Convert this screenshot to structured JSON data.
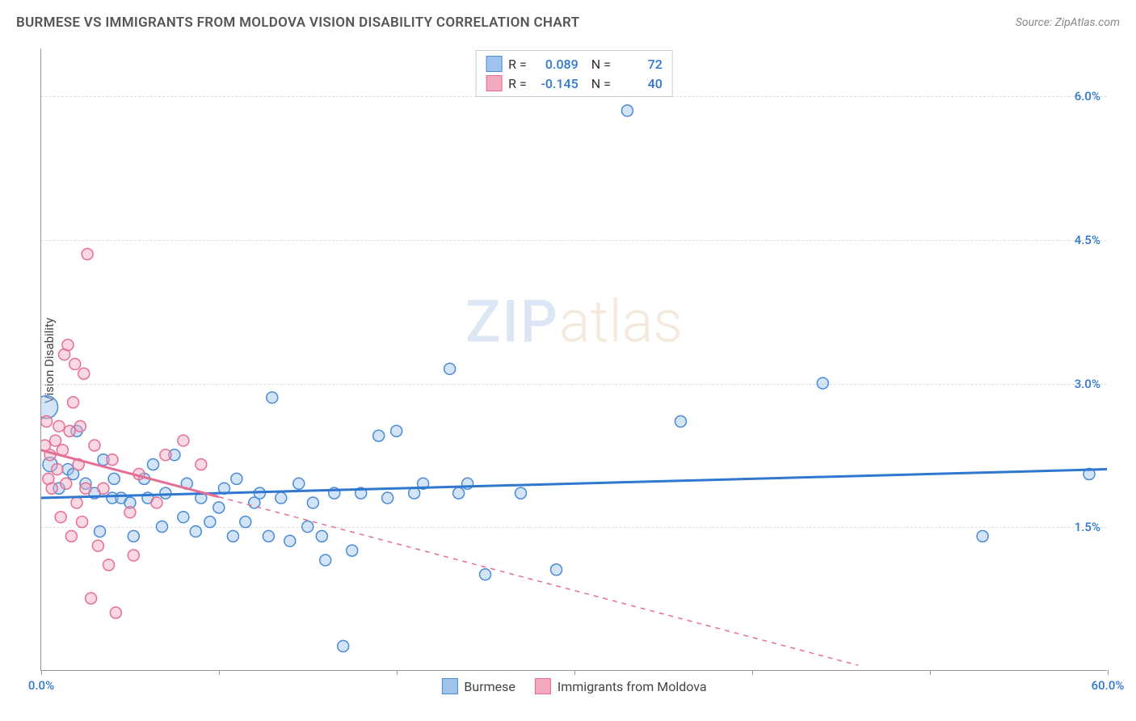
{
  "title": "BURMESE VS IMMIGRANTS FROM MOLDOVA VISION DISABILITY CORRELATION CHART",
  "source": "Source: ZipAtlas.com",
  "y_axis_label": "Vision Disability",
  "watermark": {
    "part1": "ZIP",
    "part2": "atlas"
  },
  "chart": {
    "type": "scatter",
    "xlim": [
      0,
      60
    ],
    "ylim": [
      0,
      6.5
    ],
    "x_ticks": [
      0,
      10,
      20,
      30,
      40,
      50,
      60
    ],
    "x_tick_labels_shown": {
      "0": "0.0%",
      "60": "60.0%"
    },
    "y_ticks": [
      1.5,
      3.0,
      4.5,
      6.0
    ],
    "y_tick_labels": [
      "1.5%",
      "3.0%",
      "4.5%",
      "6.0%"
    ],
    "grid_color": "#dddddd",
    "axis_color": "#999999",
    "background_color": "#ffffff",
    "series": [
      {
        "name": "Burmese",
        "fill": "#9ec3ec",
        "stroke": "#4a8bd6",
        "line_color": "#2f77cf",
        "R": "0.089",
        "N": "72",
        "points": [
          [
            0.3,
            2.75,
            14
          ],
          [
            0.5,
            2.15,
            9
          ],
          [
            1.0,
            1.9,
            7
          ],
          [
            1.5,
            2.1,
            7
          ],
          [
            1.8,
            2.05,
            7
          ],
          [
            2.0,
            2.5,
            7
          ],
          [
            2.5,
            1.95,
            7
          ],
          [
            3.0,
            1.85,
            7
          ],
          [
            3.3,
            1.45,
            7
          ],
          [
            3.5,
            2.2,
            7
          ],
          [
            4.0,
            1.8,
            7
          ],
          [
            4.1,
            2.0,
            7
          ],
          [
            4.5,
            1.8,
            7
          ],
          [
            5.0,
            1.75,
            7
          ],
          [
            5.2,
            1.4,
            7
          ],
          [
            5.8,
            2.0,
            7
          ],
          [
            6.0,
            1.8,
            7
          ],
          [
            6.3,
            2.15,
            7
          ],
          [
            6.8,
            1.5,
            7
          ],
          [
            7.0,
            1.85,
            7
          ],
          [
            7.5,
            2.25,
            7
          ],
          [
            8.0,
            1.6,
            7
          ],
          [
            8.2,
            1.95,
            7
          ],
          [
            8.7,
            1.45,
            7
          ],
          [
            9.0,
            1.8,
            7
          ],
          [
            9.5,
            1.55,
            7
          ],
          [
            10.0,
            1.7,
            7
          ],
          [
            10.3,
            1.9,
            7
          ],
          [
            10.8,
            1.4,
            7
          ],
          [
            11.0,
            2.0,
            7
          ],
          [
            11.5,
            1.55,
            7
          ],
          [
            12.0,
            1.75,
            7
          ],
          [
            12.3,
            1.85,
            7
          ],
          [
            12.8,
            1.4,
            7
          ],
          [
            13.0,
            2.85,
            7
          ],
          [
            13.5,
            1.8,
            7
          ],
          [
            14.0,
            1.35,
            7
          ],
          [
            14.5,
            1.95,
            7
          ],
          [
            15.0,
            1.5,
            7
          ],
          [
            15.3,
            1.75,
            7
          ],
          [
            15.8,
            1.4,
            7
          ],
          [
            16.0,
            1.15,
            7
          ],
          [
            16.5,
            1.85,
            7
          ],
          [
            17.0,
            0.25,
            7
          ],
          [
            17.5,
            1.25,
            7
          ],
          [
            18.0,
            1.85,
            7
          ],
          [
            19.0,
            2.45,
            7
          ],
          [
            19.5,
            1.8,
            7
          ],
          [
            20.0,
            2.5,
            7
          ],
          [
            21.0,
            1.85,
            7
          ],
          [
            21.5,
            1.95,
            7
          ],
          [
            23.0,
            3.15,
            7
          ],
          [
            23.5,
            1.85,
            7
          ],
          [
            24.0,
            1.95,
            7
          ],
          [
            25.0,
            1.0,
            7
          ],
          [
            27.0,
            1.85,
            7
          ],
          [
            29.0,
            1.05,
            7
          ],
          [
            33.0,
            5.85,
            7
          ],
          [
            36.0,
            2.6,
            7
          ],
          [
            44.0,
            3.0,
            7
          ],
          [
            53.0,
            1.4,
            7
          ],
          [
            59.0,
            2.05,
            7
          ]
        ],
        "trendline": {
          "x1": 0,
          "y1": 1.8,
          "x2": 60,
          "y2": 2.1,
          "solid_until_x": 60
        }
      },
      {
        "name": "Immigrants from Moldova",
        "fill": "#f4a8be",
        "stroke": "#e56f94",
        "line_color": "#e56f94",
        "R": "-0.145",
        "N": "40",
        "points": [
          [
            0.2,
            2.35,
            7
          ],
          [
            0.3,
            2.6,
            7
          ],
          [
            0.4,
            2.0,
            7
          ],
          [
            0.5,
            2.25,
            7
          ],
          [
            0.6,
            1.9,
            7
          ],
          [
            0.8,
            2.4,
            7
          ],
          [
            0.9,
            2.1,
            7
          ],
          [
            1.0,
            2.55,
            7
          ],
          [
            1.1,
            1.6,
            7
          ],
          [
            1.2,
            2.3,
            7
          ],
          [
            1.3,
            3.3,
            7
          ],
          [
            1.4,
            1.95,
            7
          ],
          [
            1.5,
            3.4,
            7
          ],
          [
            1.6,
            2.5,
            7
          ],
          [
            1.7,
            1.4,
            7
          ],
          [
            1.8,
            2.8,
            7
          ],
          [
            1.9,
            3.2,
            7
          ],
          [
            2.0,
            1.75,
            7
          ],
          [
            2.1,
            2.15,
            7
          ],
          [
            2.2,
            2.55,
            7
          ],
          [
            2.3,
            1.55,
            7
          ],
          [
            2.4,
            3.1,
            7
          ],
          [
            2.5,
            1.9,
            7
          ],
          [
            2.6,
            4.35,
            7
          ],
          [
            2.8,
            0.75,
            7
          ],
          [
            3.0,
            2.35,
            7
          ],
          [
            3.2,
            1.3,
            7
          ],
          [
            3.5,
            1.9,
            7
          ],
          [
            3.8,
            1.1,
            7
          ],
          [
            4.0,
            2.2,
            7
          ],
          [
            4.2,
            0.6,
            7
          ],
          [
            5.0,
            1.65,
            7
          ],
          [
            5.2,
            1.2,
            7
          ],
          [
            5.5,
            2.05,
            7
          ],
          [
            6.5,
            1.75,
            7
          ],
          [
            7.0,
            2.25,
            7
          ],
          [
            8.0,
            2.4,
            7
          ],
          [
            9.0,
            2.15,
            7
          ]
        ],
        "trendline": {
          "x1": 0,
          "y1": 2.3,
          "x2": 46,
          "y2": 0.05,
          "solid_until_x": 10
        }
      }
    ]
  },
  "legend_bottom": [
    {
      "label": "Burmese",
      "fill": "#9ec3ec",
      "stroke": "#4a8bd6"
    },
    {
      "label": "Immigrants from Moldova",
      "fill": "#f4a8be",
      "stroke": "#e56f94"
    }
  ],
  "axis_label_color": "#2f77cf"
}
